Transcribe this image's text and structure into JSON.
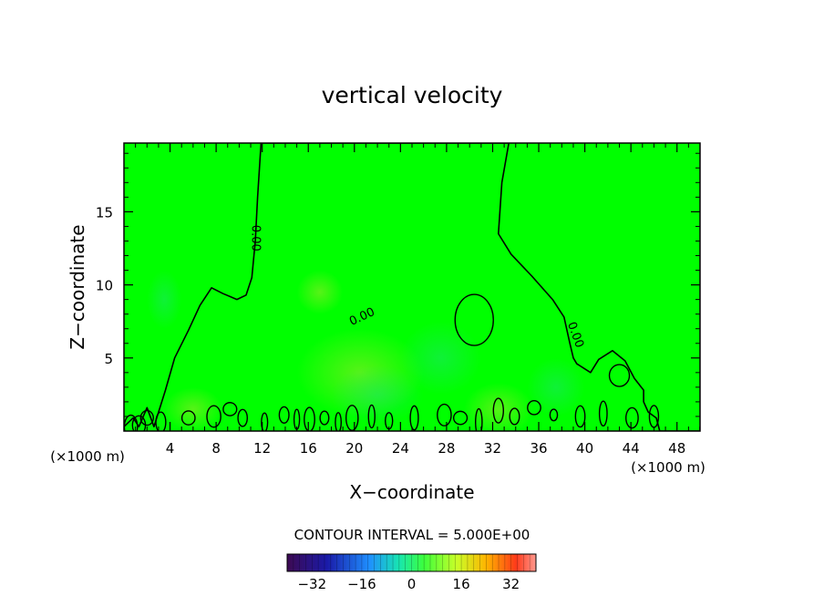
{
  "chart_data": {
    "type": "contour",
    "title": "vertical velocity",
    "xlabel": "X−coordinate",
    "ylabel": "Z−coordinate",
    "x_unit_left": "(×1000 m)",
    "x_unit_right": "(×1000 m)",
    "xlim": [
      0,
      50
    ],
    "ylim": [
      0,
      19.7
    ],
    "x_ticks": [
      4,
      8,
      12,
      16,
      20,
      24,
      28,
      32,
      36,
      40,
      44,
      48
    ],
    "y_ticks": [
      5,
      10,
      15
    ],
    "contour_label": "0.00",
    "contour_levels": [
      0
    ],
    "contour_interval_text": "CONTOUR INTERVAL = 5.000E+00",
    "colorbar": {
      "range": [
        -40,
        40
      ],
      "ticks": [
        -32,
        -16,
        0,
        16,
        32
      ],
      "tick_labels": [
        "−32",
        "−16",
        "0",
        "16",
        "32"
      ]
    },
    "field_color": "#00ff00",
    "zero_contour_boundary": [
      [
        0.0,
        0.3
      ],
      [
        0.8,
        0.9
      ],
      [
        1.3,
        0.3
      ],
      [
        2.0,
        1.6
      ],
      [
        2.6,
        0.3
      ],
      [
        3.6,
        2.8
      ],
      [
        4.4,
        5.0
      ],
      [
        5.6,
        6.9
      ],
      [
        6.6,
        8.6
      ],
      [
        7.6,
        9.8
      ],
      [
        8.6,
        9.4
      ],
      [
        9.8,
        9.0
      ],
      [
        10.6,
        9.3
      ],
      [
        11.1,
        10.5
      ],
      [
        11.4,
        13.0
      ],
      [
        11.6,
        16.0
      ],
      [
        11.9,
        19.7
      ],
      [
        33.4,
        19.7
      ],
      [
        32.8,
        17.0
      ],
      [
        32.5,
        13.5
      ],
      [
        33.6,
        12.1
      ],
      [
        35.4,
        10.6
      ],
      [
        37.2,
        9.0
      ],
      [
        38.2,
        7.8
      ],
      [
        38.7,
        6.0
      ],
      [
        39.0,
        5.0
      ],
      [
        39.3,
        4.6
      ],
      [
        40.5,
        4.0
      ],
      [
        41.2,
        4.9
      ],
      [
        42.4,
        5.5
      ],
      [
        43.5,
        4.8
      ],
      [
        44.3,
        3.6
      ],
      [
        45.1,
        2.8
      ],
      [
        45.1,
        2.0
      ],
      [
        45.5,
        1.3
      ],
      [
        46.2,
        0.9
      ],
      [
        46.5,
        0.0
      ],
      [
        50.0,
        0.0
      ],
      [
        50.0,
        0.3
      ]
    ],
    "positive_cells": [
      [
        0.6,
        0.3
      ],
      [
        1.3,
        0.4
      ],
      [
        2.0,
        0.9
      ],
      [
        3.2,
        0.6
      ],
      [
        5.6,
        0.9
      ],
      [
        7.8,
        1.0
      ],
      [
        9.2,
        1.5
      ],
      [
        10.3,
        0.9
      ],
      [
        12.2,
        0.6
      ],
      [
        13.9,
        1.1
      ],
      [
        15.0,
        0.8
      ],
      [
        16.1,
        0.8
      ],
      [
        17.4,
        0.9
      ],
      [
        18.6,
        0.6
      ],
      [
        19.8,
        0.9
      ],
      [
        21.5,
        1.0
      ],
      [
        23.0,
        0.7
      ],
      [
        25.2,
        0.9
      ],
      [
        27.8,
        1.1
      ],
      [
        29.2,
        0.9
      ],
      [
        30.8,
        0.6
      ],
      [
        32.5,
        1.4
      ],
      [
        33.9,
        1.0
      ],
      [
        35.6,
        1.6
      ],
      [
        37.3,
        1.1
      ],
      [
        39.6,
        1.0
      ],
      [
        41.6,
        1.2
      ],
      [
        43.0,
        3.8
      ],
      [
        44.1,
        0.9
      ],
      [
        46.0,
        1.0
      ],
      [
        30.4,
        7.6
      ]
    ]
  }
}
